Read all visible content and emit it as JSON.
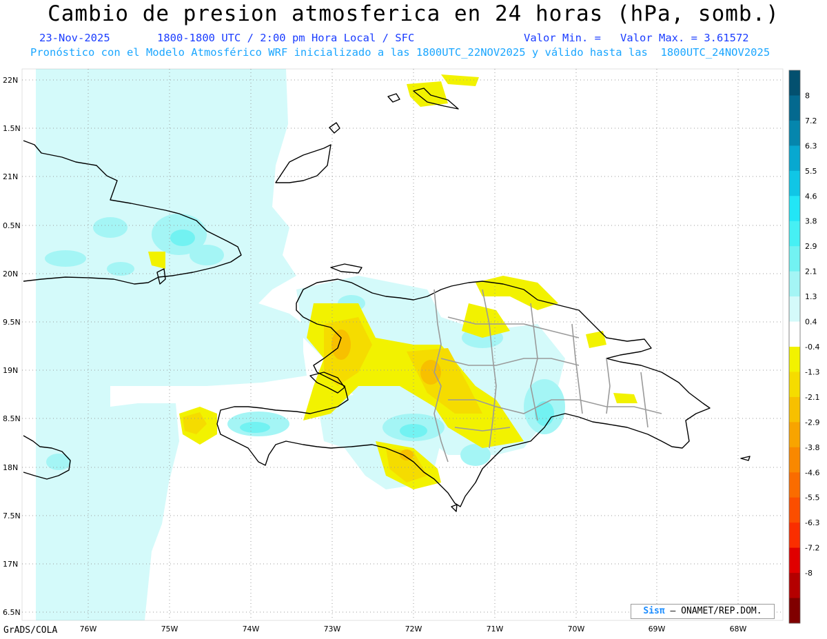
{
  "header": {
    "title": "Cambio de presion atmosferica en 24 horas (hPa, somb.)",
    "date": "23-Nov-2025",
    "valid_time": "1800-1800 UTC / 2:00 pm Hora Local / SFC",
    "min_label": "Valor Min. =",
    "max_label": "Valor Max. = 3.61572",
    "forecast_info": "Pronóstico con el Modelo Atmosférico WRF inicializado a las 1800UTC_22NOV2025 y válido hasta las  1800UTC_24NOV2025"
  },
  "axes": {
    "lat_labels": [
      "22N",
      "1.5N",
      "21N",
      "0.5N",
      "20N",
      "9.5N",
      "19N",
      "8.5N",
      "18N",
      "7.5N",
      "17N",
      "6.5N"
    ],
    "lon_labels": [
      "76W",
      "75W",
      "74W",
      "73W",
      "72W",
      "71W",
      "70W",
      "69W",
      "68W"
    ]
  },
  "colorbar": {
    "labels": [
      "8",
      "7.2",
      "6.3",
      "5.5",
      "4.6",
      "3.8",
      "2.9",
      "2.1",
      "1.3",
      "0.4",
      "-0.4",
      "-1.3",
      "-2.1",
      "-2.9",
      "-3.8",
      "-4.6",
      "-5.5",
      "-6.3",
      "-7.2",
      "-8"
    ],
    "colors": [
      "#03506f",
      "#04698f",
      "#0586ad",
      "#08a8d0",
      "#10c6e6",
      "#22e6f6",
      "#46f0f4",
      "#72f2f2",
      "#a4f5f5",
      "#d4fafa",
      "#ffffff",
      "#f2f200",
      "#f5dc00",
      "#f7c000",
      "#f8a400",
      "#f98800",
      "#fa6c00",
      "#fb4e00",
      "#fa2e00",
      "#e00000",
      "#b40000",
      "#800000"
    ]
  },
  "credit": {
    "brand": "Sisπ",
    "org": "– ONAMET/REP.DOM."
  },
  "footer": {
    "software": "GrADS/COLA"
  }
}
